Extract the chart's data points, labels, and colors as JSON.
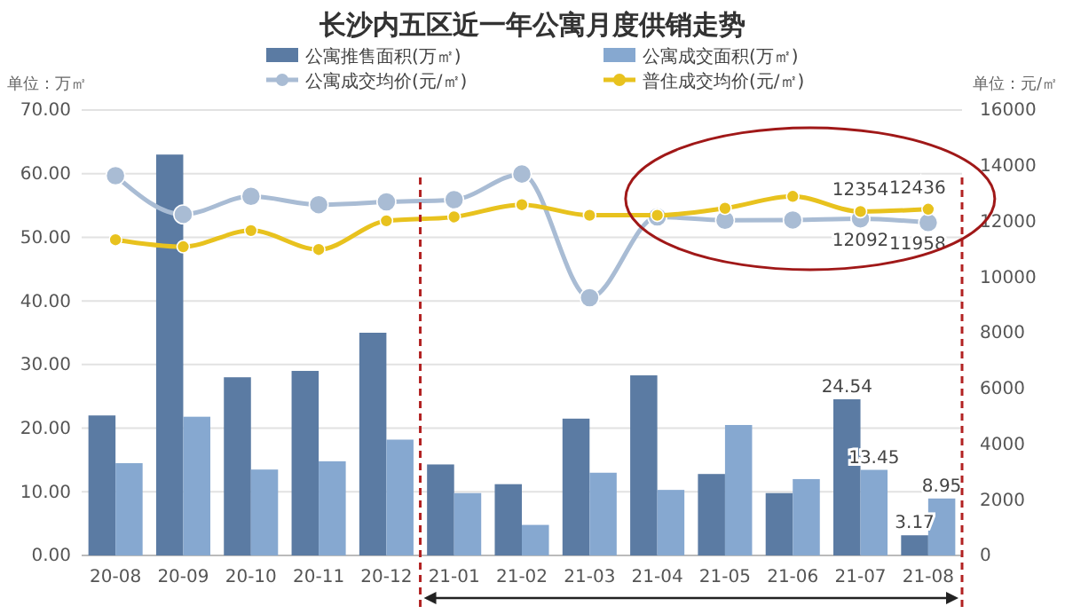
{
  "chart_data": {
    "type": "bar",
    "title": "长沙内五区近一年公寓月度供销走势",
    "ylabel": "单位：万㎡",
    "y2label": "单位：元/㎡",
    "categories": [
      "20-08",
      "20-09",
      "20-10",
      "20-11",
      "20-12",
      "21-01",
      "21-02",
      "21-03",
      "21-04",
      "21-05",
      "21-06",
      "21-07",
      "21-08"
    ],
    "series": [
      {
        "name": "公寓推售面积(万㎡)",
        "color": "#5b7ba3",
        "values": [
          22,
          63,
          28,
          29,
          35,
          14.3,
          11.2,
          21.5,
          28.3,
          12.8,
          9.8,
          24.54,
          3.17
        ],
        "value_labels": [
          null,
          null,
          null,
          null,
          null,
          null,
          null,
          null,
          null,
          null,
          null,
          "24.54",
          "3.17"
        ]
      },
      {
        "name": "公寓成交面积(万㎡)",
        "color": "#86a8d0",
        "values": [
          14.5,
          21.8,
          13.5,
          14.8,
          18.2,
          9.8,
          4.8,
          13,
          10.3,
          20.5,
          12,
          13.45,
          8.95
        ],
        "value_labels": [
          null,
          null,
          null,
          null,
          null,
          null,
          null,
          null,
          null,
          null,
          null,
          "13.45",
          "8.95"
        ]
      },
      {
        "name": "公寓成交均价(元/㎡)",
        "type": "line",
        "axis": "y2",
        "color": "#a9bcd4",
        "marker": "circle",
        "values": [
          13640,
          12250,
          12900,
          12600,
          12700,
          12780,
          13700,
          9260,
          12160,
          12040,
          12050,
          12092,
          11958
        ],
        "value_labels": [
          null,
          null,
          null,
          null,
          null,
          null,
          null,
          null,
          null,
          null,
          null,
          "12092",
          "11958"
        ]
      },
      {
        "name": "普住成交均价(元/㎡)",
        "type": "line",
        "axis": "y2",
        "color": "#e8c21e",
        "marker": "circle",
        "values": [
          11340,
          11090,
          11670,
          10990,
          12020,
          12160,
          12600,
          12220,
          12220,
          12470,
          12900,
          12354,
          12436
        ],
        "value_labels": [
          null,
          null,
          null,
          null,
          null,
          null,
          null,
          null,
          null,
          null,
          null,
          "12354",
          "12436"
        ]
      }
    ],
    "ylim": [
      0,
      70
    ],
    "yticks": [
      {
        "value": 0,
        "label": "0.00"
      },
      {
        "value": 10,
        "label": "10.00"
      },
      {
        "value": 20,
        "label": "20.00"
      },
      {
        "value": 30,
        "label": "30.00"
      },
      {
        "value": 40,
        "label": "40.00"
      },
      {
        "value": 50,
        "label": "50.00"
      },
      {
        "value": 60,
        "label": "60.00"
      },
      {
        "value": 70,
        "label": "70.00"
      }
    ],
    "y2lim": [
      0,
      16000
    ],
    "y2ticks": [
      0,
      2000,
      4000,
      6000,
      8000,
      10000,
      12000,
      14000,
      16000
    ],
    "grid": "y",
    "legend": "top"
  }
}
